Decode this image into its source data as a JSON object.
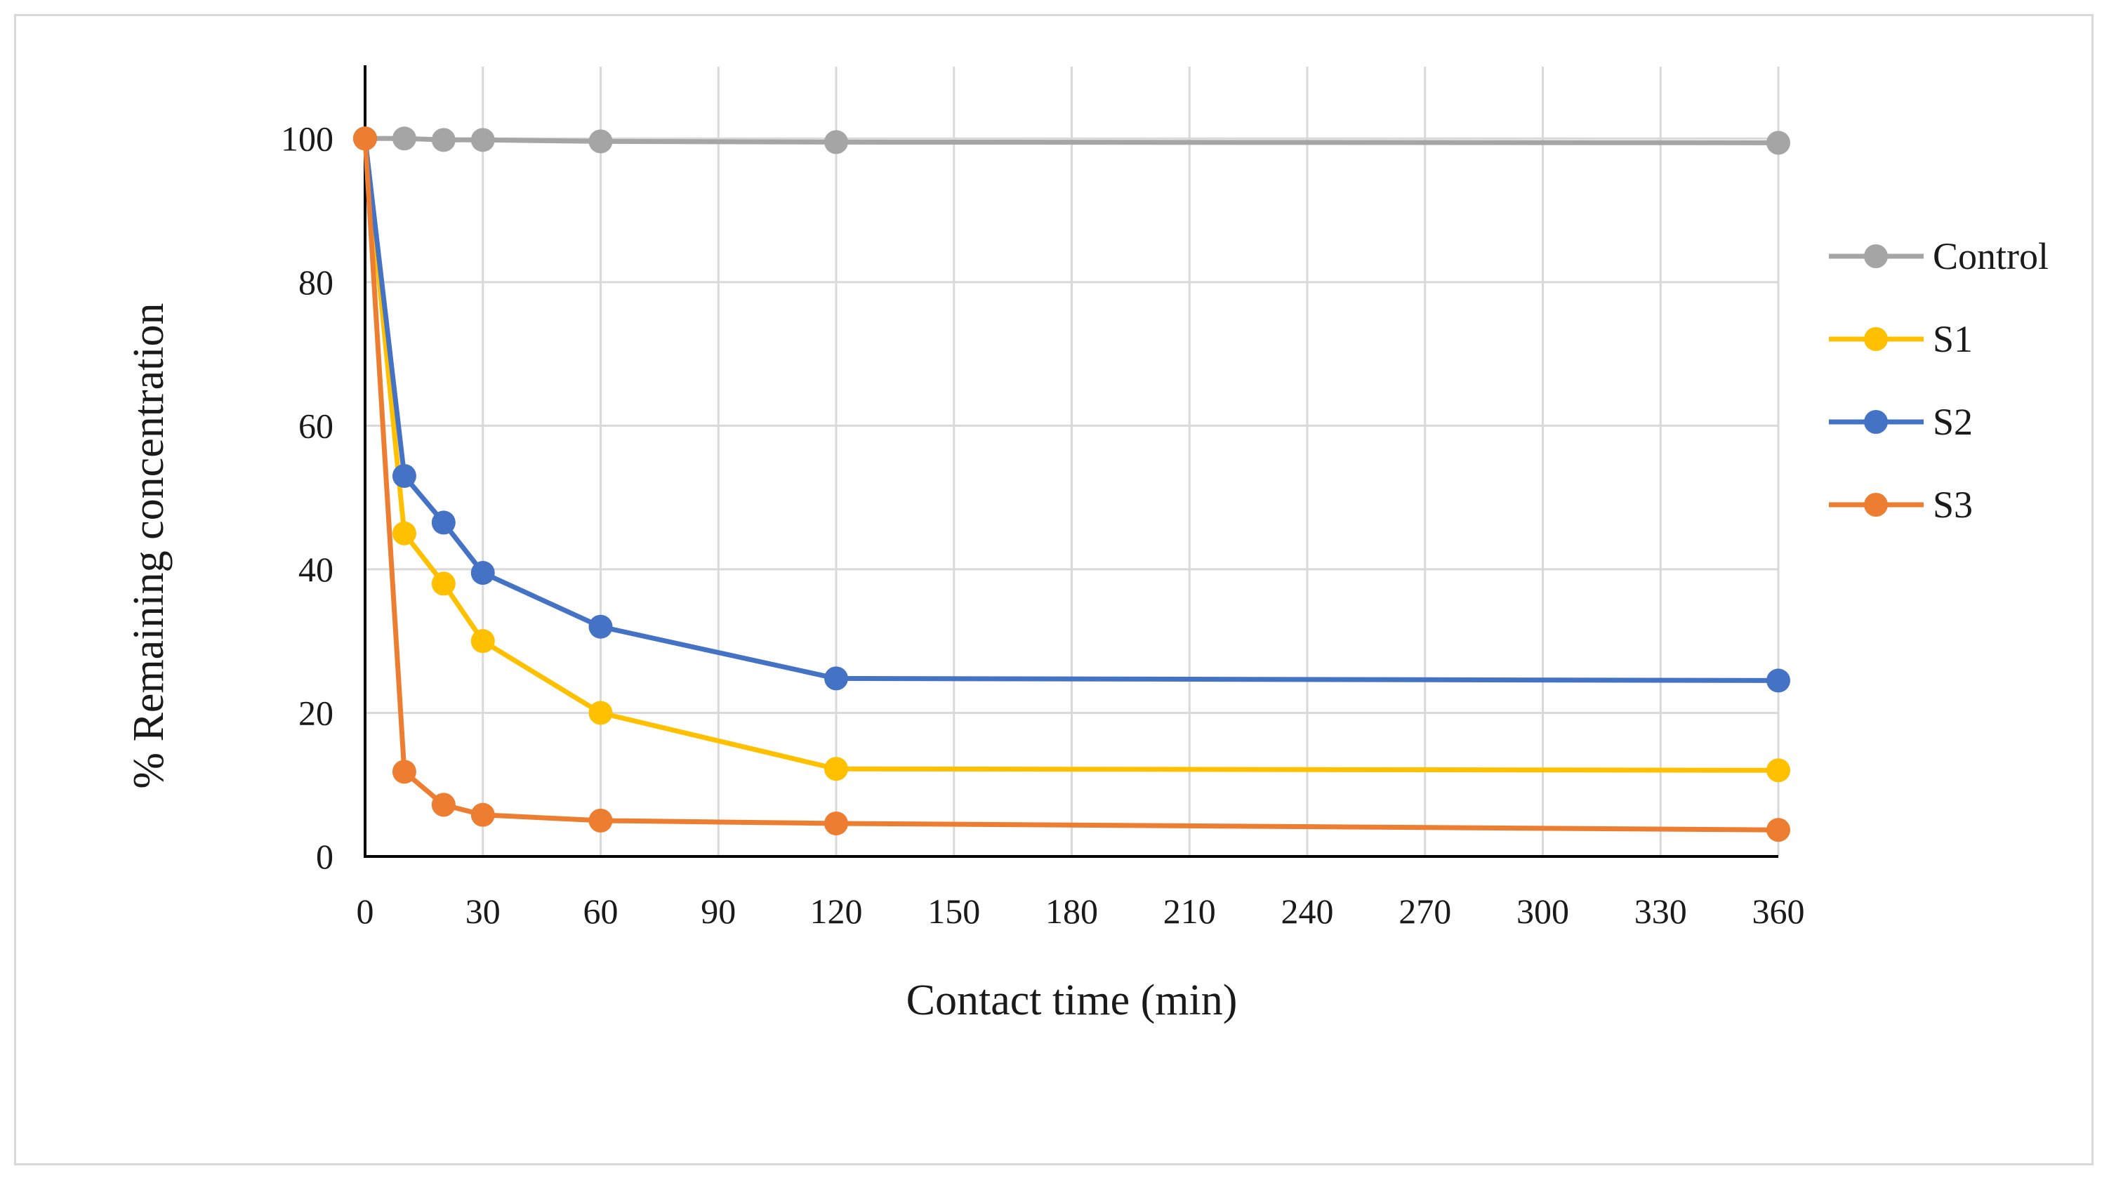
{
  "chart_data": {
    "type": "line",
    "title": "",
    "xlabel": "Contact time (min)",
    "ylabel": "% Remaining concentration",
    "xlim": [
      0,
      360
    ],
    "ylim": [
      0,
      110
    ],
    "x_ticks": [
      0,
      30,
      60,
      90,
      120,
      150,
      180,
      210,
      240,
      270,
      300,
      330,
      360
    ],
    "y_ticks": [
      0,
      20,
      40,
      60,
      80,
      100
    ],
    "grid": true,
    "legend_position": "right",
    "x": [
      0,
      10,
      20,
      30,
      60,
      120,
      360
    ],
    "series": [
      {
        "name": "Control",
        "color": "#a5a5a5",
        "values": [
          100,
          100,
          99.8,
          99.8,
          99.6,
          99.5,
          99.4
        ]
      },
      {
        "name": "S1",
        "color": "#ffc000",
        "values": [
          100,
          45,
          38,
          30,
          20,
          12.2,
          12
        ]
      },
      {
        "name": "S2",
        "color": "#4472c4",
        "values": [
          100,
          53,
          46.5,
          39.5,
          32,
          24.8,
          24.5
        ]
      },
      {
        "name": "S3",
        "color": "#ed7d31",
        "values": [
          100,
          11.8,
          7.2,
          5.8,
          5,
          4.6,
          3.7
        ]
      }
    ]
  }
}
